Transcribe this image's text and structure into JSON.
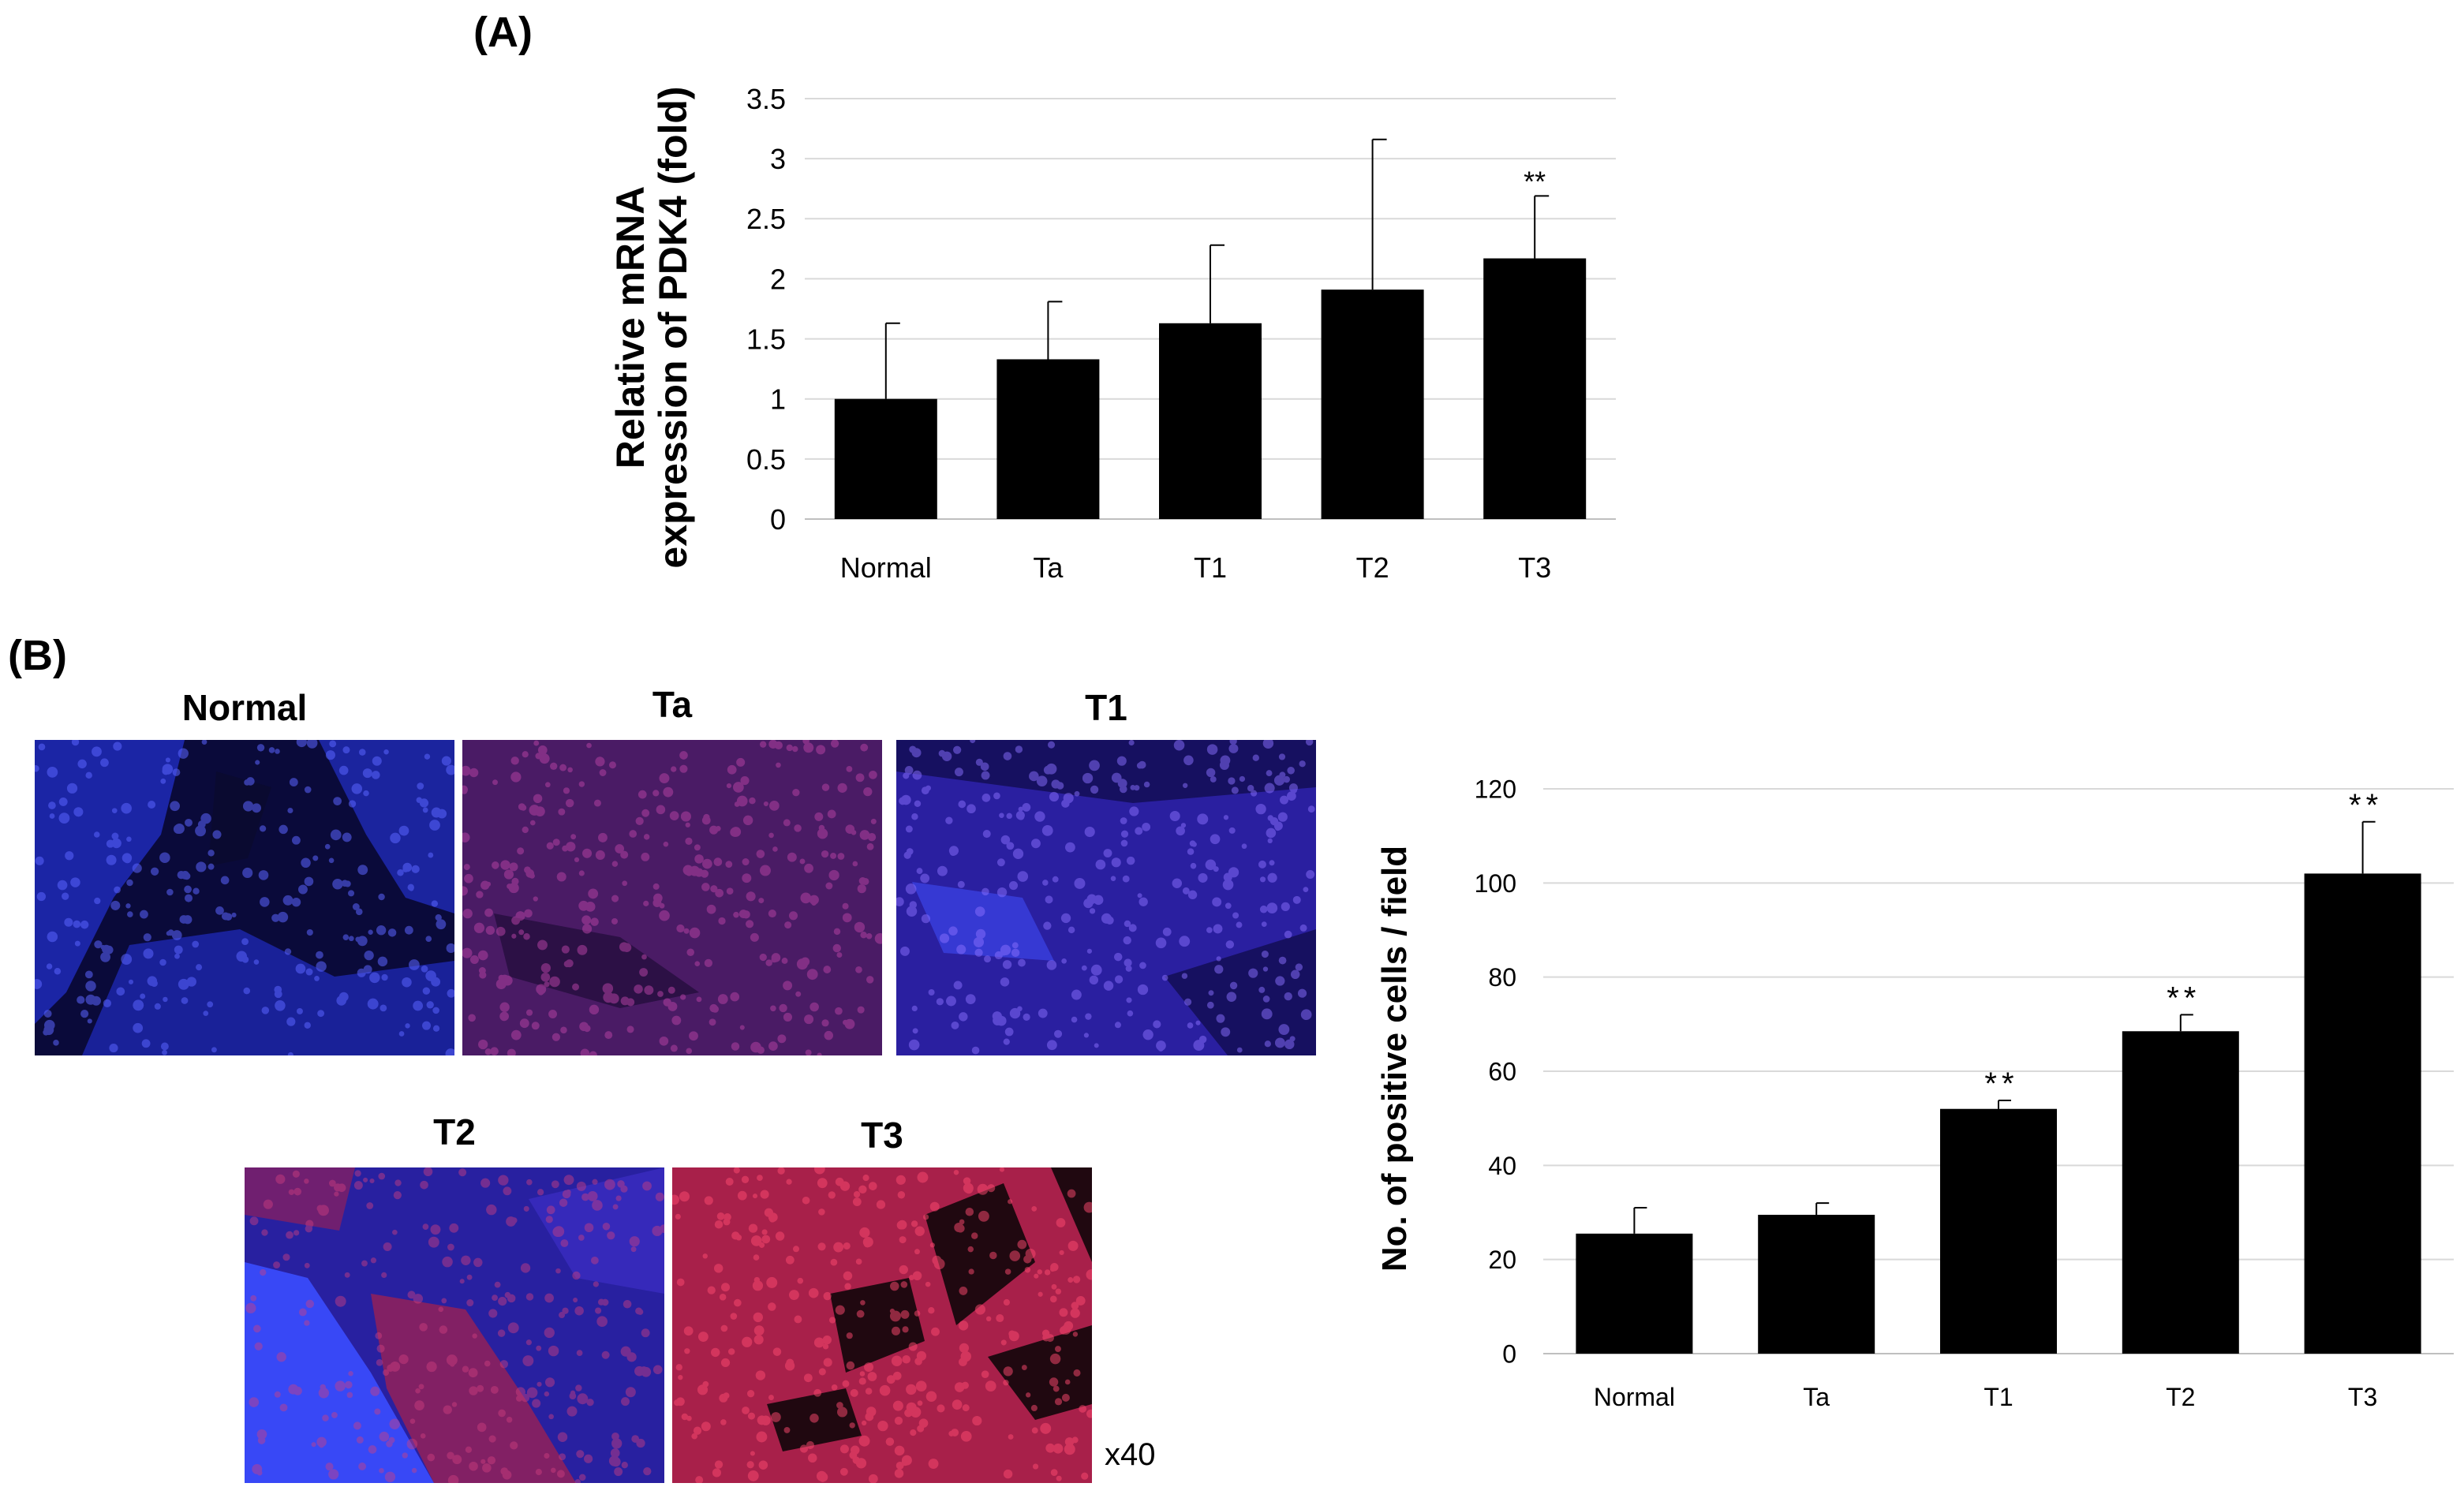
{
  "panel_a_label": "(A)",
  "panel_b_label": "(B)",
  "magnification": "x40",
  "images": [
    {
      "label": "Normal",
      "tone": "blue",
      "color": "#1f2ab8"
    },
    {
      "label": "Ta",
      "tone": "purple-red",
      "color": "#4a1c70"
    },
    {
      "label": "T1",
      "tone": "blue-purple",
      "color": "#3326b0"
    },
    {
      "label": "T2",
      "tone": "blue-red",
      "color": "#4a2fd0"
    },
    {
      "label": "T3",
      "tone": "red",
      "color": "#b0204a"
    }
  ],
  "chart_data": [
    {
      "type": "bar",
      "title": "",
      "xlabel": "",
      "ylabel": "Relative mRNA expression of PDK4 (fold)",
      "ylabel_lines": [
        "Relative mRNA",
        "expression of PDK4 (fold)"
      ],
      "categories": [
        "Normal",
        "Ta",
        "T1",
        "T2",
        "T3"
      ],
      "values": [
        1.0,
        1.33,
        1.63,
        1.91,
        2.17
      ],
      "error_upper": [
        0.63,
        0.48,
        0.65,
        1.25,
        0.52
      ],
      "annotations": [
        "",
        "",
        "",
        "",
        "**"
      ],
      "ylim": [
        0,
        3.5
      ],
      "yticks": [
        0,
        0.5,
        1,
        1.5,
        2,
        2.5,
        3,
        3.5
      ],
      "ytick_labels": [
        "0",
        "0.5",
        "1",
        "1.5",
        "2",
        "2.5",
        "3",
        "3.5"
      ],
      "grid": true,
      "bar_color": "#000000"
    },
    {
      "type": "bar",
      "title": "",
      "xlabel": "",
      "ylabel": "No. of positive cells / field",
      "categories": [
        "Normal",
        "Ta",
        "T1",
        "T2",
        "T3"
      ],
      "values": [
        25.5,
        29.5,
        52,
        68.5,
        102
      ],
      "error_upper": [
        5.5,
        2.5,
        1.8,
        3.5,
        11
      ],
      "annotations": [
        "",
        "",
        "**",
        "**",
        "**"
      ],
      "ylim": [
        0,
        120
      ],
      "yticks": [
        0,
        20,
        40,
        60,
        80,
        100,
        120
      ],
      "ytick_labels": [
        "0",
        "20",
        "40",
        "60",
        "80",
        "100",
        "120"
      ],
      "grid": true,
      "bar_color": "#000000"
    }
  ]
}
